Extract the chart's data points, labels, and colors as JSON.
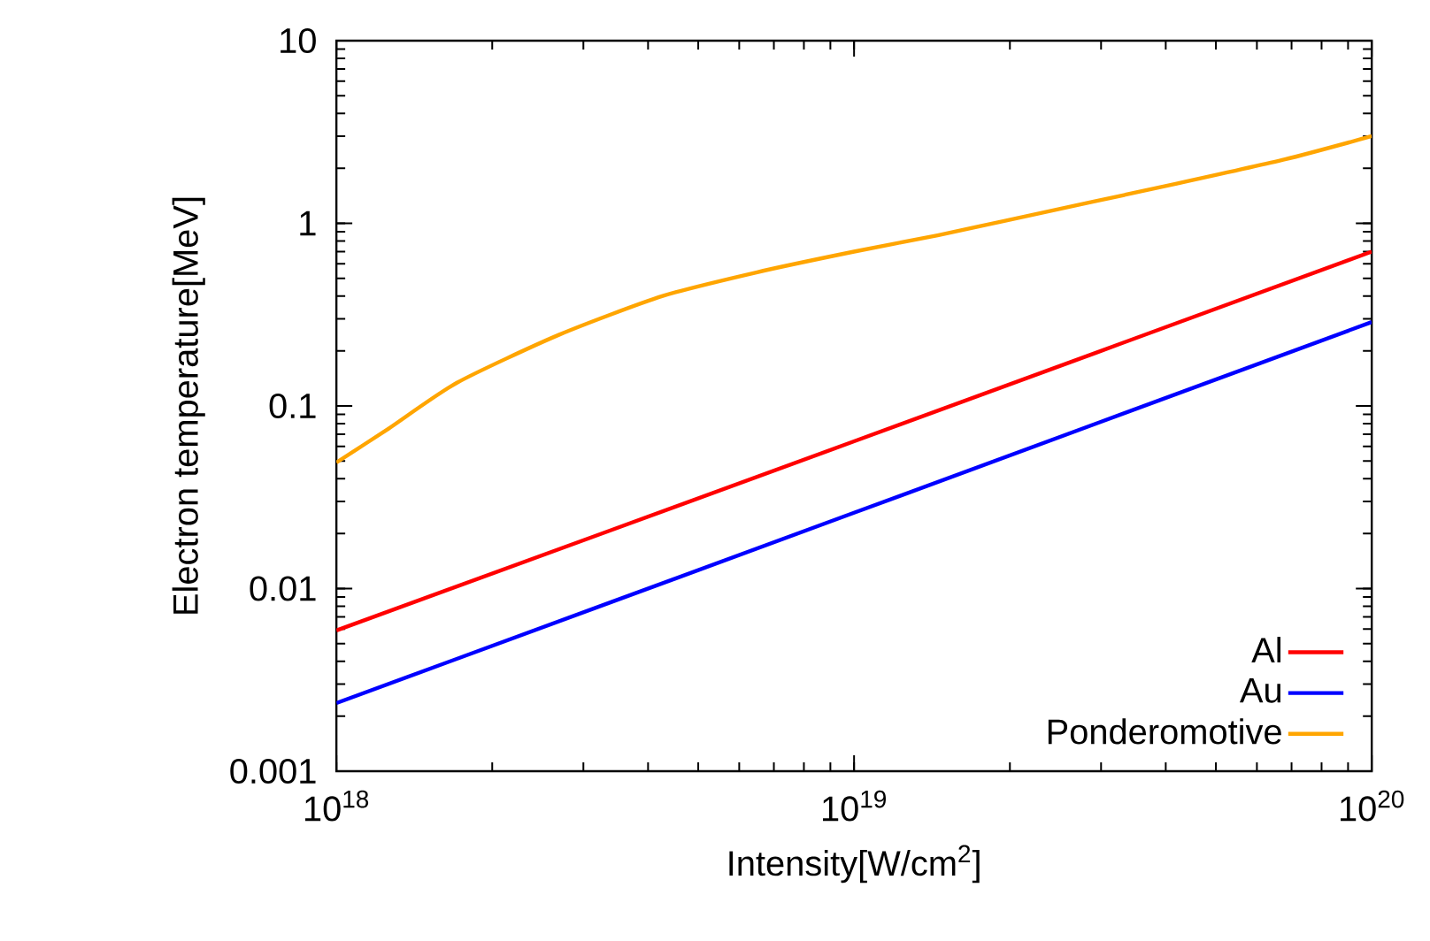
{
  "chart_data": {
    "type": "line",
    "xlabel": "Intensity[W/cm$^{2}$]",
    "ylabel": "Electron temperature[MeV]",
    "log": "xy",
    "xlim": [
      1e+18,
      1e+20
    ],
    "ylim": [
      0.001,
      10
    ],
    "xticks": [
      {
        "value": 1e+18,
        "label": "10$^{18}$"
      },
      {
        "value": 1e+19,
        "label": "10$^{19}$"
      },
      {
        "value": 1e+20,
        "label": "10$^{20}$"
      }
    ],
    "yticks": [
      0.001,
      0.01,
      0.1,
      1,
      10
    ],
    "legend": "bottom right",
    "series": [
      {
        "name": "Al",
        "color": "#ff0000",
        "x": [
          1e+18,
          1e+19,
          1e+20
        ],
        "values": [
          0.0059,
          0.064,
          0.7
        ]
      },
      {
        "name": "Au",
        "color": "#0000ff",
        "x": [
          1e+18,
          1e+19,
          1e+20
        ],
        "values": [
          0.00236,
          0.026,
          0.288
        ]
      },
      {
        "name": "Ponderomotive",
        "color": "#ffa500",
        "x": [
          1e+18,
          1.26e+18,
          1.71e+18,
          2.69e+18,
          4.27e+18,
          6.5e+18,
          1e+19,
          1.45e+19,
          1.95e+19,
          4.2e+19,
          6.8e+19,
          1e+20
        ],
        "values": [
          0.049,
          0.075,
          0.134,
          0.245,
          0.4,
          0.54,
          0.7,
          0.86,
          1.03,
          1.65,
          2.24,
          3.0
        ]
      }
    ]
  }
}
